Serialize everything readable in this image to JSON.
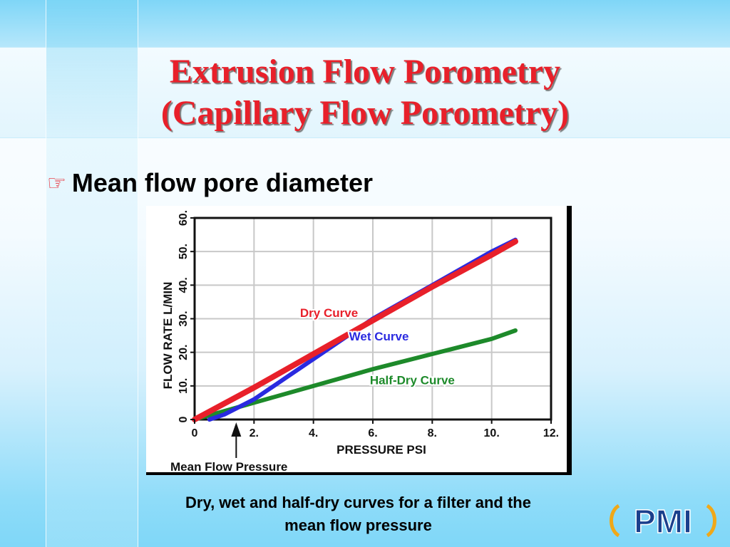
{
  "slide": {
    "title_line1": "Extrusion Flow Porometry",
    "title_line2": "(Capillary Flow Porometry)",
    "bullet_icon": "pointing-hand-icon",
    "bullet_text": "Mean flow pore diameter",
    "caption_line1": "Dry, wet and half-dry curves for a filter and the",
    "caption_line2": "mean flow pressure",
    "logo_text": "PMI"
  },
  "colors": {
    "title": "#e8202a",
    "dry": "#e8202a",
    "wet": "#2a2ae0",
    "half_dry": "#1d8a2a",
    "grid": "#c8c8c8"
  },
  "chart_data": {
    "type": "line",
    "xlabel": "PRESSURE PSI",
    "ylabel": "FLOW RATE L/MIN",
    "xlim": [
      0,
      12
    ],
    "ylim": [
      0,
      60
    ],
    "x_ticks": [
      "0",
      "2.",
      "4.",
      "6.",
      "8.",
      "10.",
      "12."
    ],
    "y_ticks": [
      "0",
      "10.",
      "20.",
      "30.",
      "40.",
      "50.",
      "60."
    ],
    "grid": true,
    "series": [
      {
        "name": "Dry Curve",
        "color": "#e8202a",
        "x": [
          0,
          2,
          4,
          6,
          8,
          10,
          10.8
        ],
        "y": [
          0,
          9.5,
          19.5,
          29.5,
          39.5,
          49,
          53
        ]
      },
      {
        "name": "Wet Curve",
        "color": "#2a2ae0",
        "x": [
          0.5,
          1,
          2,
          3,
          4,
          5,
          6,
          7,
          8,
          9,
          10,
          10.8
        ],
        "y": [
          0,
          1.5,
          6,
          12,
          18,
          24,
          30,
          35,
          40,
          45,
          50,
          53.5
        ]
      },
      {
        "name": "Half-Dry Curve",
        "color": "#1d8a2a",
        "x": [
          0,
          2,
          4,
          6,
          8,
          10,
          10.8
        ],
        "y": [
          0,
          5,
          10,
          15,
          19.5,
          24,
          26.5
        ]
      }
    ],
    "annotation": {
      "label": "Mean Flow Pressure",
      "x": 1.4
    }
  }
}
